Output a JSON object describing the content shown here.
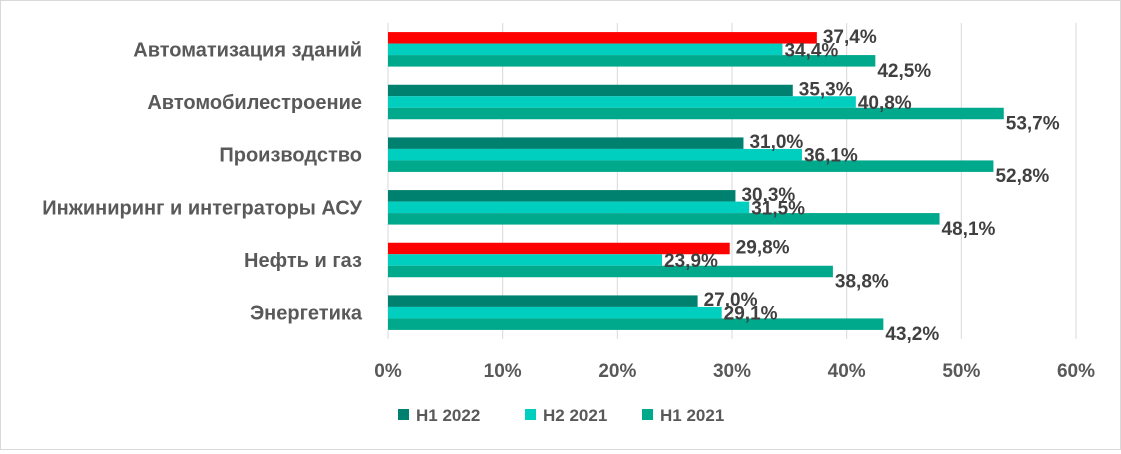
{
  "chart_data": {
    "type": "bar",
    "orientation": "horizontal",
    "categories": [
      "Автоматизация зданий",
      "Автомобилестроение",
      "Производство",
      "Инжиниринг и интеграторы АСУ",
      "Нефть и газ",
      "Энергетика"
    ],
    "series": [
      {
        "name": "H1 2022",
        "color": "#00806e",
        "values": [
          37.4,
          35.3,
          31.0,
          30.3,
          29.8,
          27.0
        ],
        "labels": [
          "37,4%",
          "35,3%",
          "31,0%",
          "30,3%",
          "29,8%",
          "27,0%"
        ]
      },
      {
        "name": "H2 2021",
        "color": "#00cfc0",
        "values": [
          34.4,
          40.8,
          36.1,
          31.5,
          23.9,
          29.1
        ],
        "labels": [
          "34,4%",
          "40,8%",
          "36,1%",
          "31,5%",
          "23,9%",
          "29,1%"
        ]
      },
      {
        "name": "H1 2021",
        "color": "#00a88c",
        "values": [
          42.5,
          53.7,
          52.8,
          48.1,
          38.8,
          43.2
        ],
        "labels": [
          "42,5%",
          "53,7%",
          "52,8%",
          "48,1%",
          "38,8%",
          "43,2%"
        ]
      }
    ],
    "highlight": {
      "color": "#ff0000",
      "series": "H1 2022",
      "categories": [
        "Автоматизация зданий",
        "Нефть и газ"
      ]
    },
    "xlim": [
      0,
      60
    ],
    "xticks": [
      "0%",
      "10%",
      "20%",
      "30%",
      "40%",
      "50%",
      "60%"
    ],
    "grid": true,
    "legend_position": "bottom"
  }
}
